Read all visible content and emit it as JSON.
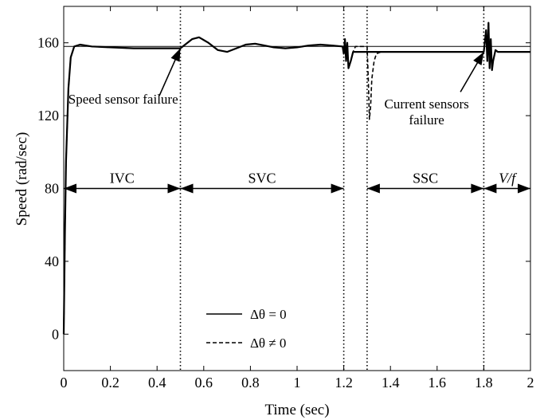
{
  "chart_data": {
    "type": "line",
    "xlabel": "Time (sec)",
    "ylabel": "Speed (rad/sec)",
    "xlim": [
      0,
      2
    ],
    "ylim": [
      -20,
      180
    ],
    "xticks": [
      0,
      0.2,
      0.4,
      0.6,
      0.8,
      1,
      1.2,
      1.4,
      1.6,
      1.8,
      2
    ],
    "xtick_labels": [
      "0",
      "0.2",
      "0.4",
      "0.6",
      "0.8",
      "1",
      "1.2",
      "1.4",
      "1.6",
      "1.8",
      "2"
    ],
    "yticks": [
      0,
      40,
      80,
      120,
      160
    ],
    "ytick_labels": [
      "0",
      "40",
      "80",
      "120",
      "160"
    ],
    "grid": false,
    "legend_position": "bottom-center",
    "reference_line": {
      "y": 158
    },
    "series": [
      {
        "name": "Δθ = 0",
        "style": "solid",
        "points": [
          [
            0,
            0
          ],
          [
            0.005,
            55
          ],
          [
            0.01,
            95
          ],
          [
            0.02,
            135
          ],
          [
            0.03,
            152
          ],
          [
            0.045,
            158
          ],
          [
            0.07,
            159
          ],
          [
            0.12,
            158
          ],
          [
            0.2,
            157.5
          ],
          [
            0.3,
            157
          ],
          [
            0.4,
            157
          ],
          [
            0.5,
            157
          ],
          [
            0.52,
            159
          ],
          [
            0.55,
            162
          ],
          [
            0.58,
            163
          ],
          [
            0.62,
            160
          ],
          [
            0.66,
            156
          ],
          [
            0.7,
            155
          ],
          [
            0.74,
            157
          ],
          [
            0.78,
            159
          ],
          [
            0.82,
            159.5
          ],
          [
            0.86,
            158.5
          ],
          [
            0.9,
            157.5
          ],
          [
            0.95,
            157
          ],
          [
            1.0,
            157.5
          ],
          [
            1.05,
            158.5
          ],
          [
            1.1,
            159
          ],
          [
            1.15,
            158.5
          ],
          [
            1.195,
            158
          ],
          [
            1.2,
            154
          ],
          [
            1.205,
            162
          ],
          [
            1.21,
            150
          ],
          [
            1.215,
            160
          ],
          [
            1.22,
            146
          ],
          [
            1.23,
            150
          ],
          [
            1.24,
            155
          ],
          [
            1.26,
            155
          ],
          [
            1.3,
            155
          ],
          [
            1.35,
            155
          ],
          [
            1.4,
            155
          ],
          [
            1.6,
            155
          ],
          [
            1.8,
            155
          ],
          [
            1.81,
            167
          ],
          [
            1.815,
            150
          ],
          [
            1.82,
            171
          ],
          [
            1.825,
            146
          ],
          [
            1.83,
            162
          ],
          [
            1.835,
            145
          ],
          [
            1.84,
            150
          ],
          [
            1.85,
            156
          ],
          [
            1.86,
            155
          ],
          [
            2.0,
            155
          ]
        ]
      },
      {
        "name": "Δθ ≠ 0",
        "style": "dashed",
        "points": [
          [
            0,
            0
          ],
          [
            0.005,
            55
          ],
          [
            0.01,
            95
          ],
          [
            0.02,
            135
          ],
          [
            0.03,
            152
          ],
          [
            0.045,
            158
          ],
          [
            0.07,
            159
          ],
          [
            0.12,
            158
          ],
          [
            0.2,
            157.5
          ],
          [
            0.3,
            157
          ],
          [
            0.4,
            157
          ],
          [
            0.5,
            157
          ],
          [
            0.52,
            159
          ],
          [
            0.55,
            162
          ],
          [
            0.58,
            163
          ],
          [
            0.62,
            160
          ],
          [
            0.66,
            156
          ],
          [
            0.7,
            155
          ],
          [
            0.74,
            157
          ],
          [
            0.78,
            159
          ],
          [
            0.82,
            159.5
          ],
          [
            0.86,
            158.5
          ],
          [
            0.9,
            157.5
          ],
          [
            0.95,
            157
          ],
          [
            1.0,
            157.5
          ],
          [
            1.05,
            158.5
          ],
          [
            1.1,
            159
          ],
          [
            1.15,
            158.5
          ],
          [
            1.195,
            158
          ],
          [
            1.2,
            154
          ],
          [
            1.205,
            162
          ],
          [
            1.21,
            150
          ],
          [
            1.215,
            160
          ],
          [
            1.22,
            146
          ],
          [
            1.23,
            150
          ],
          [
            1.24,
            155
          ],
          [
            1.25,
            158
          ],
          [
            1.3,
            158
          ],
          [
            1.305,
            140
          ],
          [
            1.31,
            118
          ],
          [
            1.315,
            125
          ],
          [
            1.32,
            140
          ],
          [
            1.33,
            150
          ],
          [
            1.34,
            154
          ],
          [
            1.36,
            155
          ],
          [
            1.4,
            155
          ],
          [
            1.6,
            155
          ],
          [
            1.8,
            155
          ],
          [
            1.81,
            167
          ],
          [
            1.815,
            150
          ],
          [
            1.82,
            171
          ],
          [
            1.825,
            146
          ],
          [
            1.83,
            162
          ],
          [
            1.835,
            145
          ],
          [
            1.84,
            150
          ],
          [
            1.85,
            156
          ],
          [
            1.86,
            155
          ],
          [
            2.0,
            155
          ]
        ]
      }
    ],
    "vlines": [
      0.5,
      1.2,
      1.3,
      1.8
    ],
    "regions": [
      {
        "label": "IVC",
        "x0": 0,
        "x1": 0.5,
        "y": 80
      },
      {
        "label": "SVC",
        "x0": 0.5,
        "x1": 1.2,
        "y": 80
      },
      {
        "label": "SSC",
        "x0": 1.3,
        "x1": 1.8,
        "y": 80
      },
      {
        "label": "V/f",
        "x0": 1.8,
        "x1": 2.0,
        "y": 80,
        "italic": true
      }
    ],
    "annotations": [
      {
        "lines": [
          "Speed sensor failure"
        ],
        "text_x": 0.255,
        "text_y": 126.5,
        "arrow_from": [
          0.41,
          131
        ],
        "arrow_to": [
          0.5,
          157
        ]
      },
      {
        "lines": [
          "Current sensors",
          "failure"
        ],
        "text_x": 1.555,
        "text_y": 124,
        "arrow_from": [
          1.7,
          133
        ],
        "arrow_to": [
          1.8,
          155
        ]
      }
    ]
  }
}
